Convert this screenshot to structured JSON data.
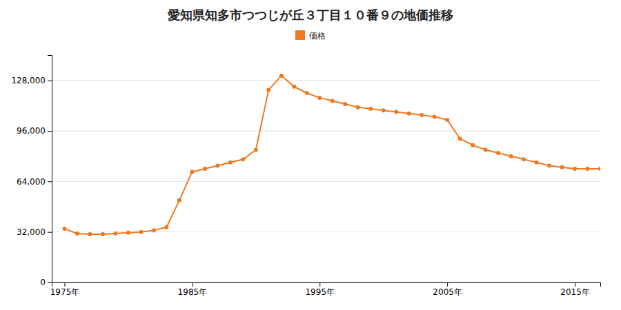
{
  "chart_data": {
    "type": "line",
    "title": "愛知県知多市つつじが丘３丁目１０番９の地価推移",
    "x": [
      1975,
      1976,
      1977,
      1978,
      1979,
      1980,
      1981,
      1982,
      1983,
      1984,
      1985,
      1986,
      1987,
      1988,
      1989,
      1990,
      1991,
      1992,
      1993,
      1994,
      1995,
      1996,
      1997,
      1998,
      1999,
      2000,
      2001,
      2002,
      2003,
      2004,
      2005,
      2006,
      2007,
      2008,
      2009,
      2010,
      2011,
      2012,
      2013,
      2014,
      2015,
      2016,
      2017
    ],
    "series": [
      {
        "name": "価格",
        "color": "#f07820",
        "marker": "circle",
        "values": [
          34000,
          31000,
          30500,
          30500,
          31000,
          31500,
          32000,
          33000,
          35000,
          52000,
          70000,
          72000,
          74000,
          76000,
          78000,
          84000,
          122000,
          131000,
          124000,
          120000,
          117000,
          115000,
          113000,
          111000,
          110000,
          109000,
          108000,
          107000,
          106000,
          105000,
          103000,
          91000,
          87000,
          84000,
          82000,
          80000,
          78000,
          76000,
          74000,
          73000,
          72000,
          72000,
          72000
        ]
      }
    ],
    "xlim": [
      1974,
      2017
    ],
    "xticks": [
      {
        "value": 1975,
        "label": "1975年"
      },
      {
        "value": 1985,
        "label": "1985年"
      },
      {
        "value": 1995,
        "label": "1995年"
      },
      {
        "value": 2005,
        "label": "2005年"
      },
      {
        "value": 2015,
        "label": "2015年"
      }
    ],
    "ylim": [
      0,
      144000
    ],
    "yticks": [
      0,
      {
        "value": 32000,
        "label": "32,000"
      },
      {
        "value": 64000,
        "label": "64,000"
      },
      {
        "value": 96000,
        "label": "96,000"
      },
      {
        "value": 128000,
        "label": "128,000"
      }
    ],
    "grid": true,
    "legend": "top"
  }
}
